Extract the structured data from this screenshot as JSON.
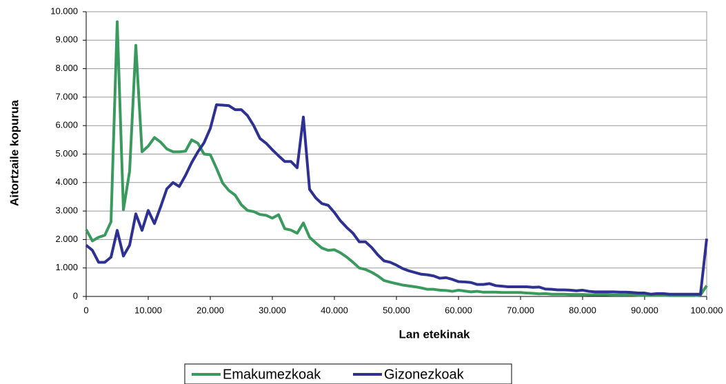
{
  "chart_data": {
    "type": "line",
    "xlabel": "Lan etekinak",
    "ylabel": "Aitortzaile kopurua",
    "x": [
      0,
      1000,
      2000,
      3000,
      4000,
      5000,
      6000,
      7000,
      8000,
      9000,
      10000,
      11000,
      12000,
      13000,
      14000,
      15000,
      16000,
      17000,
      18000,
      19000,
      20000,
      21000,
      22000,
      23000,
      24000,
      25000,
      26000,
      27000,
      28000,
      29000,
      30000,
      31000,
      32000,
      33000,
      34000,
      35000,
      36000,
      37000,
      38000,
      39000,
      40000,
      41000,
      42000,
      43000,
      44000,
      45000,
      46000,
      47000,
      48000,
      49000,
      50000,
      51000,
      52000,
      53000,
      54000,
      55000,
      56000,
      57000,
      58000,
      59000,
      60000,
      61000,
      62000,
      63000,
      64000,
      65000,
      66000,
      67000,
      68000,
      69000,
      70000,
      71000,
      72000,
      73000,
      74000,
      75000,
      76000,
      77000,
      78000,
      79000,
      80000,
      81000,
      82000,
      83000,
      84000,
      85000,
      86000,
      87000,
      88000,
      89000,
      90000,
      91000,
      92000,
      93000,
      94000,
      95000,
      96000,
      97000,
      98000,
      99000,
      100000
    ],
    "series": [
      {
        "name": "Emakumezkoak",
        "color": "#3a9a5e",
        "values": [
          2350,
          1950,
          2080,
          2150,
          2620,
          9650,
          3050,
          4400,
          8820,
          5080,
          5280,
          5580,
          5420,
          5180,
          5080,
          5080,
          5100,
          5500,
          5380,
          5000,
          4980,
          4500,
          3980,
          3720,
          3560,
          3220,
          3020,
          2980,
          2880,
          2850,
          2750,
          2870,
          2380,
          2330,
          2220,
          2580,
          2080,
          1880,
          1700,
          1620,
          1640,
          1530,
          1380,
          1200,
          1000,
          950,
          850,
          720,
          560,
          500,
          450,
          400,
          370,
          340,
          300,
          250,
          250,
          220,
          210,
          180,
          220,
          190,
          160,
          180,
          150,
          150,
          150,
          140,
          140,
          140,
          140,
          120,
          110,
          90,
          100,
          80,
          80,
          80,
          70,
          70,
          70,
          60,
          60,
          60,
          60,
          50,
          50,
          50,
          50,
          40,
          40,
          40,
          40,
          40,
          30,
          30,
          30,
          30,
          30,
          50,
          380
        ]
      },
      {
        "name": "Gizonezkoak",
        "color": "#2e3192",
        "values": [
          1800,
          1620,
          1200,
          1200,
          1380,
          2320,
          1420,
          1800,
          2900,
          2320,
          3020,
          2560,
          3150,
          3780,
          4000,
          3860,
          4250,
          4700,
          5080,
          5400,
          5900,
          6730,
          6720,
          6700,
          6560,
          6560,
          6350,
          6000,
          5550,
          5380,
          5150,
          4940,
          4740,
          4740,
          4520,
          6300,
          3760,
          3460,
          3260,
          3200,
          2950,
          2650,
          2420,
          2220,
          1920,
          1920,
          1720,
          1460,
          1250,
          1200,
          1100,
          980,
          900,
          840,
          780,
          760,
          720,
          640,
          660,
          600,
          520,
          510,
          490,
          420,
          420,
          450,
          380,
          360,
          340,
          340,
          340,
          340,
          320,
          330,
          260,
          250,
          230,
          230,
          220,
          200,
          220,
          180,
          160,
          160,
          160,
          160,
          150,
          150,
          140,
          120,
          120,
          80,
          100,
          100,
          80,
          80,
          80,
          80,
          80,
          80,
          2030
        ]
      }
    ],
    "xlim": [
      0,
      100000
    ],
    "xticks": [
      0,
      {
        "value": 10000,
        "label": "10.000"
      },
      {
        "value": 20000,
        "label": "20.000"
      },
      {
        "value": 30000,
        "label": "30.000"
      },
      {
        "value": 40000,
        "label": "40.000"
      },
      {
        "value": 50000,
        "label": "50.000"
      },
      {
        "value": 60000,
        "label": "60.000"
      },
      {
        "value": 70000,
        "label": "70.000"
      },
      {
        "value": 80000,
        "label": "80.000"
      },
      {
        "value": 90000,
        "label": "90.000"
      },
      {
        "value": 100000,
        "label": "100.000"
      }
    ],
    "ylim": [
      0,
      10000
    ],
    "yticks": [
      0,
      {
        "value": 1000,
        "label": "1.000"
      },
      {
        "value": 2000,
        "label": "2.000"
      },
      {
        "value": 3000,
        "label": "3.000"
      },
      {
        "value": 4000,
        "label": "4.000"
      },
      {
        "value": 5000,
        "label": "5.000"
      },
      {
        "value": 6000,
        "label": "6.000"
      },
      {
        "value": 7000,
        "label": "7.000"
      },
      {
        "value": 8000,
        "label": "8.000"
      },
      {
        "value": 9000,
        "label": "9.000"
      },
      {
        "value": 10000,
        "label": "10.000"
      }
    ],
    "grid": true
  }
}
